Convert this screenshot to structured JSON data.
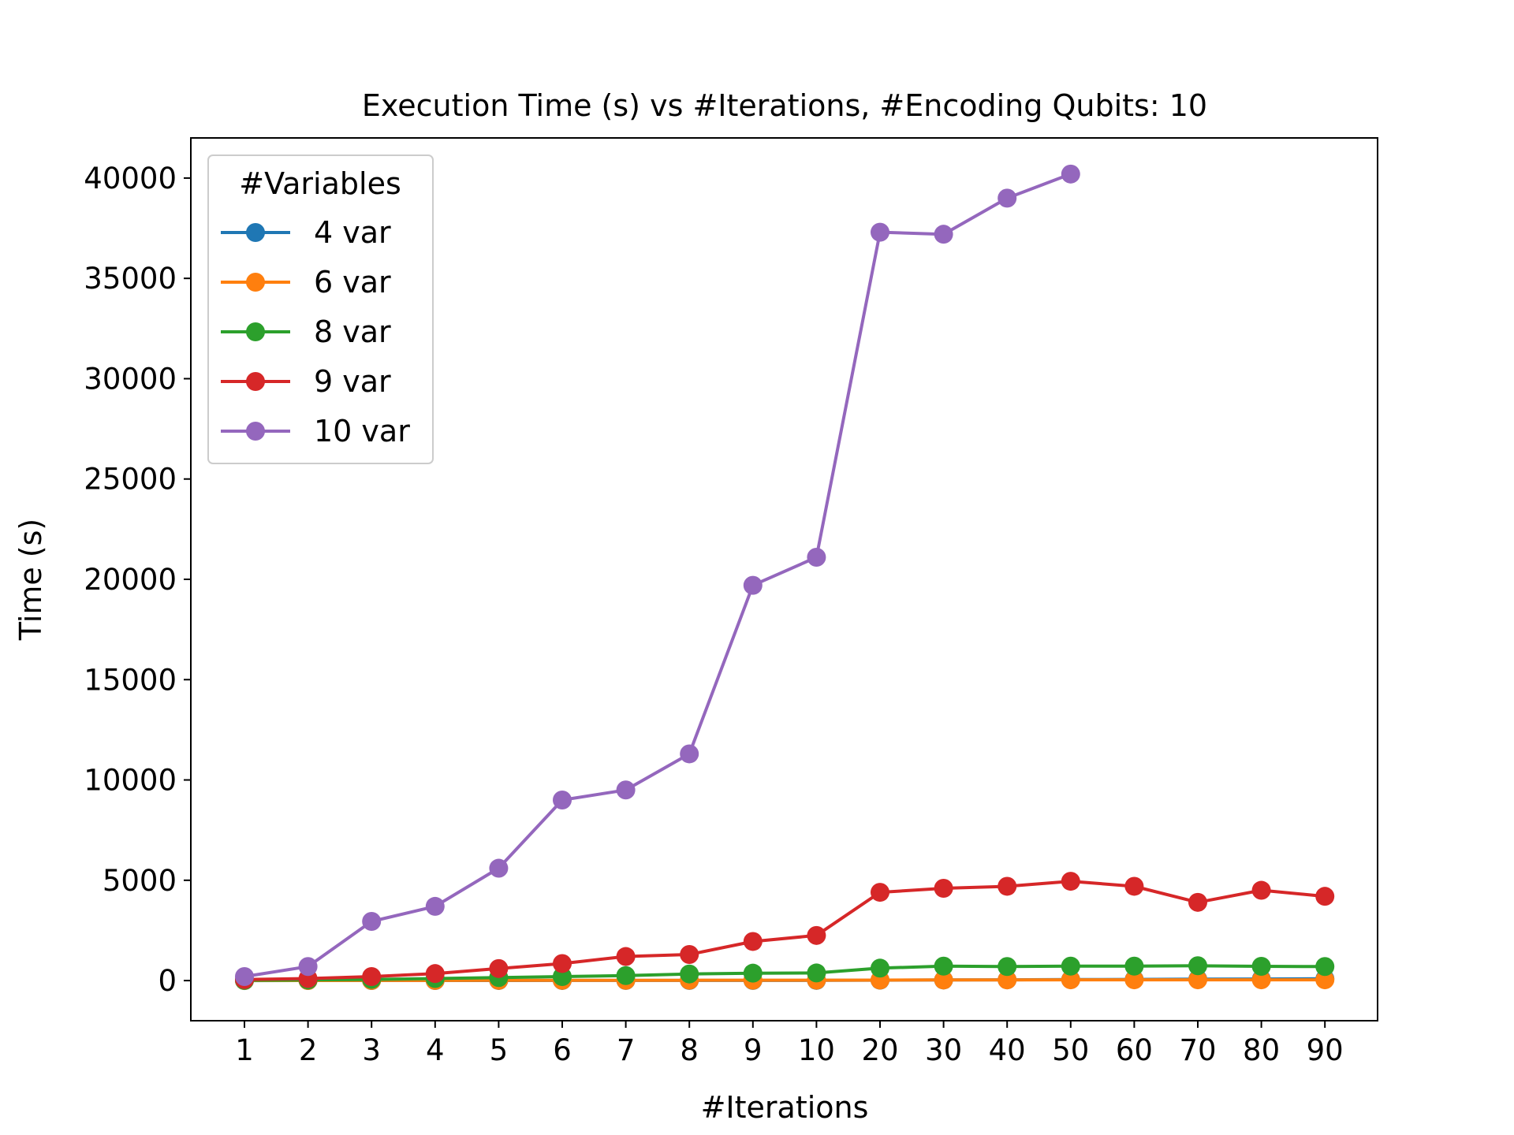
{
  "chart_data": {
    "type": "line",
    "title": "Execution Time (s) vs #Iterations, #Encoding Qubits: 10",
    "xlabel": "#Iterations",
    "ylabel": "Time (s)",
    "categories": [
      "1",
      "2",
      "3",
      "4",
      "5",
      "6",
      "7",
      "8",
      "9",
      "10",
      "20",
      "30",
      "40",
      "50",
      "60",
      "70",
      "80",
      "90"
    ],
    "ylim": [
      -2000,
      42000
    ],
    "yticks": [
      0,
      5000,
      10000,
      15000,
      20000,
      25000,
      30000,
      35000,
      40000
    ],
    "grid": false,
    "legend": {
      "title": "#Variables",
      "placement": "top-left"
    },
    "series": [
      {
        "name": "4 var",
        "color": "#1f77b4",
        "values": [
          1,
          2,
          3,
          4,
          5,
          6,
          7,
          8,
          9,
          10,
          20,
          30,
          40,
          50,
          60,
          70,
          80,
          90
        ]
      },
      {
        "name": "6 var",
        "color": "#ff7f0e",
        "values": [
          2,
          4,
          6,
          8,
          10,
          12,
          14,
          16,
          18,
          20,
          25,
          30,
          35,
          40,
          40,
          40,
          40,
          40
        ]
      },
      {
        "name": "8 var",
        "color": "#2ca02c",
        "values": [
          10,
          30,
          60,
          100,
          150,
          200,
          250,
          330,
          370,
          380,
          620,
          720,
          700,
          720,
          720,
          740,
          710,
          700
        ]
      },
      {
        "name": "9 var",
        "color": "#d62728",
        "values": [
          50,
          100,
          200,
          350,
          600,
          850,
          1200,
          1300,
          1950,
          2250,
          4400,
          4600,
          4700,
          4950,
          4700,
          3900,
          4500,
          4200
        ]
      },
      {
        "name": "10 var",
        "color": "#9467bd",
        "values": [
          200,
          700,
          2950,
          3700,
          5600,
          9000,
          9500,
          11300,
          19700,
          21100,
          37300,
          37200,
          39000,
          40200,
          null,
          null,
          null,
          null
        ]
      }
    ]
  }
}
